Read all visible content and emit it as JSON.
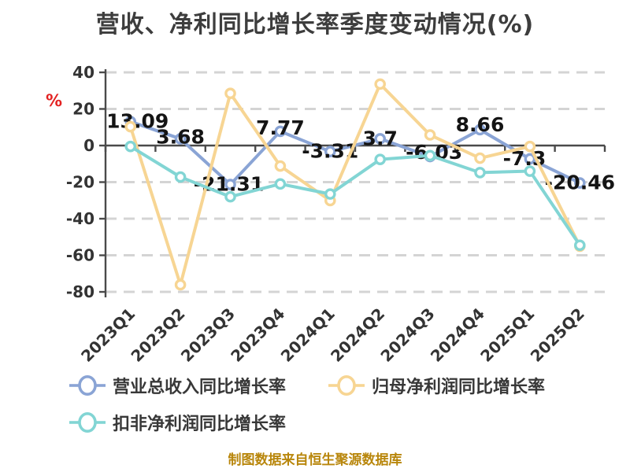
{
  "title": "营收、净利同比增长率季度变动情况(%)",
  "y_axis_unit": "%",
  "source_note": "制图数据来自恒生聚源数据库",
  "colors": {
    "title": "#3d3d3d",
    "axis_line": "#4a4a4a",
    "grid_line": "#d4d4d4",
    "tick_text": "#333333",
    "value_label": "#141414",
    "y_unit": "#e32222",
    "legend_text": "#383838",
    "source_text": "#b8860b",
    "background": "#ffffff",
    "marker_fill": "#ffffff"
  },
  "chart_data": {
    "type": "line",
    "categories": [
      "2023Q1",
      "2023Q2",
      "2023Q3",
      "2023Q4",
      "2024Q1",
      "2024Q2",
      "2024Q3",
      "2024Q4",
      "2025Q1",
      "2025Q2"
    ],
    "y_ticks": [
      40,
      20,
      0,
      -20,
      -40,
      -60,
      -80
    ],
    "ylim": [
      -80,
      40
    ],
    "grid": "horizontal-dashed",
    "legend_position": "bottom-left",
    "legend_rows": [
      [
        0,
        1
      ],
      [
        2
      ]
    ],
    "series": [
      {
        "key": "revenue-yoy",
        "name": "营业总收入同比增长率",
        "color": "#8AA4D5",
        "values": [
          13.09,
          3.68,
          -21.31,
          7.77,
          -3.31,
          3.7,
          -6.03,
          8.66,
          -7.3,
          -20.46
        ],
        "labels": [
          "13.09",
          "3.68",
          "-21.31",
          "7.77",
          "-3.31",
          "3.7",
          "-6.03",
          "8.66",
          "-7.3",
          "-20.46"
        ]
      },
      {
        "key": "net-profit-yoy",
        "name": "归母净利润同比增长率",
        "color": "#F7D593",
        "values": [
          10.3,
          -76.1,
          28.5,
          -11.2,
          -30.1,
          33.6,
          5.8,
          -6.9,
          -0.5,
          -55.0
        ]
      },
      {
        "key": "non-gaap-net-profit-yoy",
        "name": "扣非净利润同比增长率",
        "color": "#82D5D4",
        "values": [
          -0.5,
          -17.2,
          -28.0,
          -21.0,
          -26.5,
          -7.6,
          -5.5,
          -14.8,
          -14.0,
          -54.5
        ]
      }
    ],
    "label_offsets": {
      "dx": [
        9,
        0,
        -2,
        0,
        0,
        0,
        5,
        0,
        -7,
        0
      ],
      "dy": [
        8,
        6,
        8,
        4,
        8,
        8,
        3,
        2,
        8,
        8
      ]
    }
  }
}
